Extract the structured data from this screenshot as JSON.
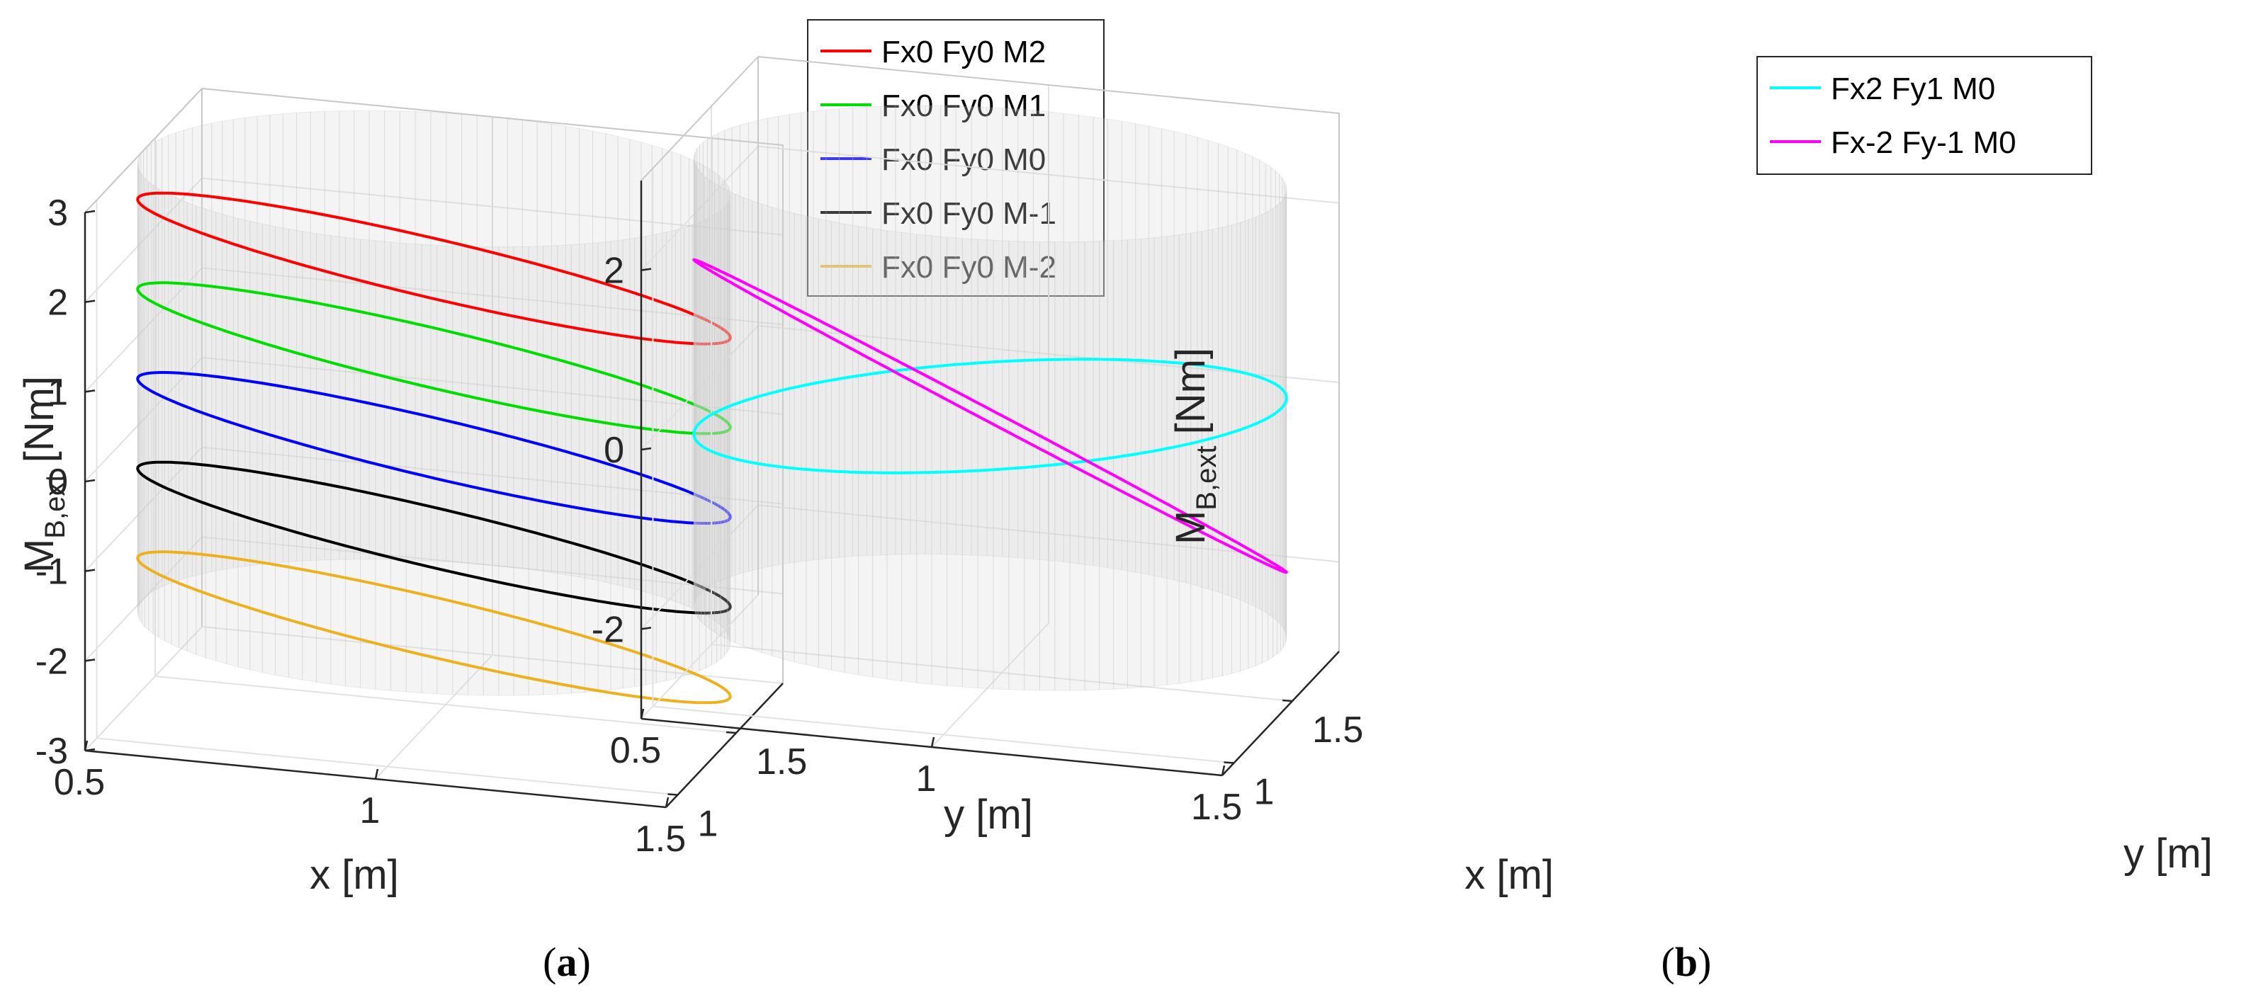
{
  "chart_data": [
    {
      "type": "line3d",
      "panel_label": "a",
      "caption_open": "(",
      "caption_close": ")",
      "xlabel": "x [m]",
      "ylabel": "y [m]",
      "zlabel_main": "M",
      "zlabel_sub": "B,ext",
      "zlabel_unit": " [Nm]",
      "xlim": [
        0.5,
        1.5
      ],
      "ylim": [
        0.9,
        1.9
      ],
      "zlim": [
        -3,
        3
      ],
      "x_ticks": [
        {
          "v": 0.5,
          "label": "0.5"
        },
        {
          "v": 1,
          "label": "1"
        },
        {
          "v": 1.5,
          "label": "1.5"
        }
      ],
      "y_ticks": [
        {
          "v": 1,
          "label": "1"
        },
        {
          "v": 1.5,
          "label": "1.5"
        }
      ],
      "z_ticks": [
        {
          "v": 3,
          "label": "3"
        },
        {
          "v": 2,
          "label": "2"
        },
        {
          "v": 1,
          "label": "1"
        },
        {
          "v": 0,
          "label": "0"
        },
        {
          "v": -1,
          "label": "-1"
        },
        {
          "v": -2,
          "label": "-2"
        },
        {
          "v": -3,
          "label": "-3"
        }
      ],
      "grid": true,
      "legend_position": "top-right",
      "surface": {
        "center_x": 1.0,
        "center_y": 1.4,
        "radius": 0.5,
        "z_range": [
          -2,
          3
        ],
        "color": "#d9d9d9"
      },
      "series": [
        {
          "name": "Fx0 Fy0 M2",
          "color": "#ff0000",
          "shape": "tilted-ellipse",
          "center_x": 1.0,
          "center_y": 1.4,
          "radius": 0.5,
          "z_offset": 2,
          "tilt_x": 0,
          "tilt_y": 0,
          "base_z": 0.72
        },
        {
          "name": "Fx0 Fy0 M1",
          "color": "#00dd00",
          "shape": "tilted-ellipse",
          "center_x": 1.0,
          "center_y": 1.4,
          "radius": 0.5,
          "z_offset": 1,
          "tilt_x": 0,
          "tilt_y": 0,
          "base_z": 0.72
        },
        {
          "name": "Fx0 Fy0 M0",
          "color": "#0000ff",
          "shape": "tilted-ellipse",
          "center_x": 1.0,
          "center_y": 1.4,
          "radius": 0.5,
          "z_offset": 0,
          "tilt_x": 0,
          "tilt_y": 0,
          "base_z": 0.72
        },
        {
          "name": "Fx0 Fy0 M-1",
          "color": "#000000",
          "shape": "tilted-ellipse",
          "center_x": 1.0,
          "center_y": 1.4,
          "radius": 0.5,
          "z_offset": -1,
          "tilt_x": 0,
          "tilt_y": 0,
          "base_z": 0.72
        },
        {
          "name": "Fx0 Fy0 M-2",
          "color": "#edb120",
          "shape": "tilted-ellipse",
          "center_x": 1.0,
          "center_y": 1.4,
          "radius": 0.5,
          "z_offset": -2,
          "tilt_x": 0,
          "tilt_y": 0,
          "base_z": 0.72
        }
      ]
    },
    {
      "type": "line3d",
      "panel_label": "b",
      "caption_open": "(",
      "caption_close": ")",
      "xlabel": "x [m]",
      "ylabel": "y [m]",
      "zlabel_main": "M",
      "zlabel_sub": "B,ext",
      "zlabel_unit": " [Nm]",
      "xlim": [
        0.5,
        1.5
      ],
      "ylim": [
        0.9,
        1.9
      ],
      "zlim": [
        -3,
        3
      ],
      "x_ticks": [
        {
          "v": 0.5,
          "label": "0.5"
        },
        {
          "v": 1,
          "label": "1"
        },
        {
          "v": 1.5,
          "label": "1.5"
        }
      ],
      "y_ticks": [
        {
          "v": 1,
          "label": "1"
        },
        {
          "v": 1.5,
          "label": "1.5"
        }
      ],
      "z_ticks": [
        {
          "v": 2,
          "label": "2"
        },
        {
          "v": 0,
          "label": "0"
        },
        {
          "v": -2,
          "label": "-2"
        }
      ],
      "grid": true,
      "legend_position": "top-right",
      "surface": {
        "center_x": 1.0,
        "center_y": 1.4,
        "radius": 0.5,
        "z_range": [
          -2.3,
          2.7
        ],
        "color": "#d9d9d9"
      },
      "series": [
        {
          "name": "Fx2 Fy1 M0",
          "color": "#00ffff",
          "shape": "tilted-ellipse",
          "center_x": 1.0,
          "center_y": 1.4,
          "radius": 0.5,
          "z_offset": 0,
          "tilt_x": 2,
          "tilt_y": 1,
          "base_z": 0.72
        },
        {
          "name": "Fx-2 Fy-1 M0",
          "color": "#ff00ff",
          "shape": "tilted-ellipse",
          "center_x": 1.0,
          "center_y": 1.4,
          "radius": 0.5,
          "z_offset": 0,
          "tilt_x": -2,
          "tilt_y": -1,
          "base_z": 0.72
        }
      ]
    }
  ]
}
